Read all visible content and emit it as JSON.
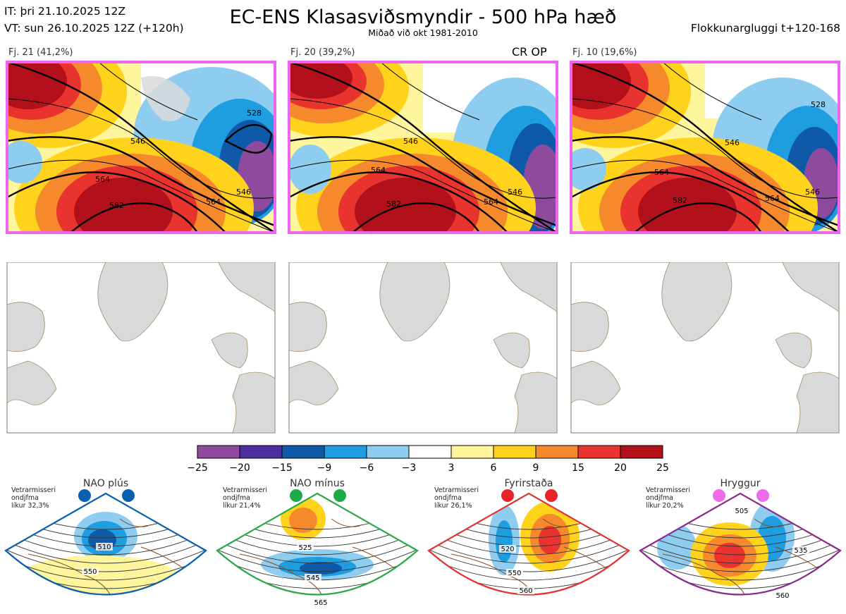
{
  "header": {
    "it_line": "IT: þri 21.10.2025 12Z",
    "vt_line": "VT: sun 26.10.2025 12Z  (+120h)",
    "title": "EC-ENS Klasasviðsmyndir - 500 hPa hæð",
    "subtitle": "Miðað við okt 1981-2010",
    "right": "Flokkunargluggi t+120-168"
  },
  "panels": [
    {
      "label": "Fj. 21 (41,2%)",
      "tag": "",
      "contours": [
        "528",
        "546",
        "564",
        "582",
        "546",
        "564"
      ]
    },
    {
      "label": "Fj. 20 (39,2%)",
      "tag": "CR OP",
      "contours": [
        "546",
        "564",
        "582",
        "546",
        "564"
      ]
    },
    {
      "label": "Fj. 10 (19,6%)",
      "tag": "",
      "contours": [
        "528",
        "546",
        "564",
        "582",
        "546",
        "564"
      ]
    }
  ],
  "colorbar": {
    "ticks": [
      "−25",
      "−20",
      "−15",
      "−9",
      "−6",
      "−3",
      "3",
      "6",
      "9",
      "15",
      "20",
      "25"
    ],
    "colors": [
      "#8e4a9c",
      "#4b2fa0",
      "#0f5aa8",
      "#1e9ee0",
      "#8ecdf0",
      "#ffffff",
      "#fff59d",
      "#ffd21c",
      "#f5892c",
      "#e9332e",
      "#b2101a"
    ]
  },
  "regimes": [
    {
      "name": "NAO plús",
      "note1": "Vetrarmisseri",
      "note2": "ondjfma",
      "prob": "líkur 32,3%",
      "dot_color": "#0a5fb0",
      "border": "#0a5fb0",
      "labels": [
        "510",
        "550"
      ]
    },
    {
      "name": "NAO mínus",
      "note1": "Vetrarmisseri",
      "note2": "ondjfma",
      "prob": "líkur 21,4%",
      "dot_color": "#1faa4a",
      "border": "#2aa84a",
      "labels": [
        "525",
        "545",
        "565"
      ]
    },
    {
      "name": "Fyrirstaða",
      "note1": "Vetrarmisseri",
      "note2": "ondjfma",
      "prob": "líkur 26,1%",
      "dot_color": "#e9232a",
      "border": "#e33232",
      "labels": [
        "520",
        "550",
        "560"
      ]
    },
    {
      "name": "Hryggur",
      "note1": "Vetrarmisseri",
      "note2": "ondjfma",
      "prob": "líkur 20,2%",
      "dot_color": "#ee6bea",
      "border": "#8b2a8b",
      "labels": [
        "505",
        "535",
        "560"
      ]
    }
  ]
}
